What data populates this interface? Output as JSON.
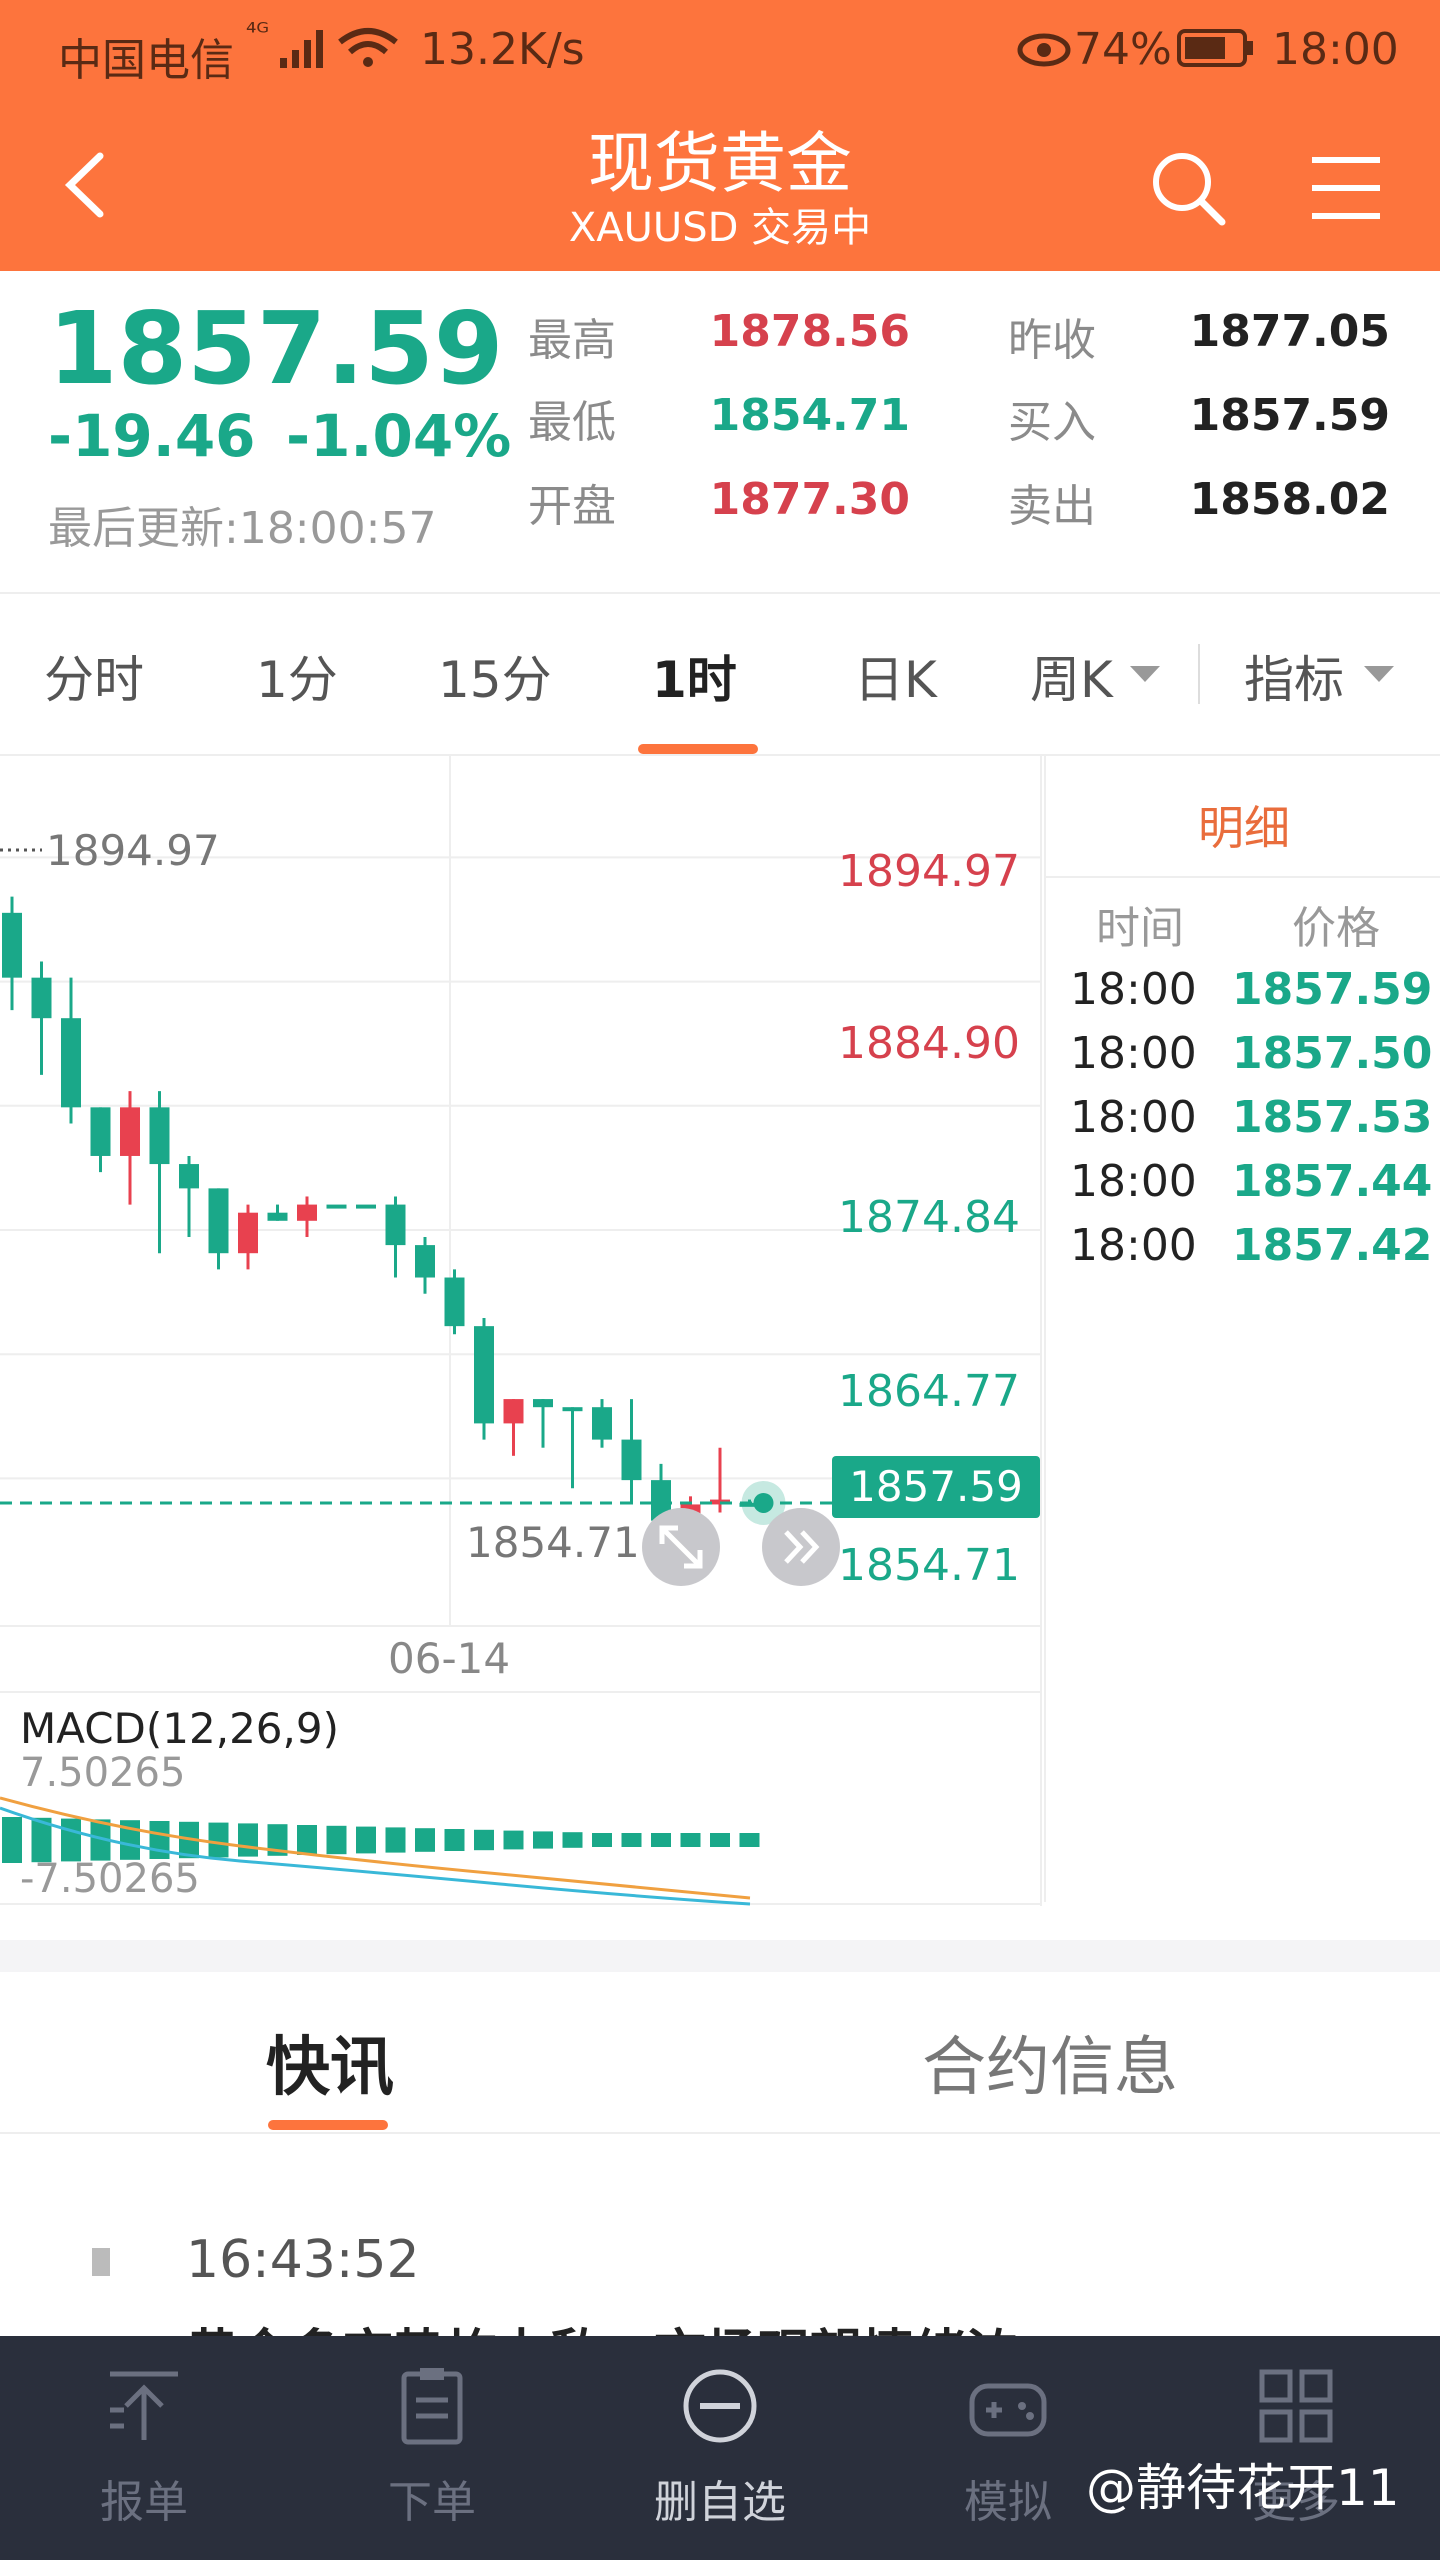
{
  "status_bar": {
    "carrier": "中国电信",
    "signal": "⁴ᴳ",
    "speed": "13.2K/s",
    "battery": "74%",
    "time": "18:00"
  },
  "header": {
    "title": "现货黄金",
    "subtitle": "XAUUSD 交易中"
  },
  "quote": {
    "price": "1857.59",
    "change": "-19.46",
    "change_pct": "-1.04%",
    "last_update": "最后更新:18:00:57",
    "stats": [
      {
        "label": "最高",
        "value": "1878.56"
      },
      {
        "label": "最低",
        "value": "1854.71"
      },
      {
        "label": "开盘",
        "value": "1877.30"
      },
      {
        "label": "昨收",
        "value": "1877.05"
      },
      {
        "label": "买入",
        "value": "1857.59"
      },
      {
        "label": "卖出",
        "value": "1858.02"
      }
    ]
  },
  "period_tabs": [
    "分时",
    "1分",
    "15分",
    "1时",
    "日K",
    "周K",
    "指标"
  ],
  "active_tab": "1时",
  "chart_data": {
    "type": "candlestick",
    "y_axis_labels": [
      "1894.97",
      "1884.90",
      "1874.84",
      "1864.77",
      "1854.71"
    ],
    "high_marker": "1894.97",
    "low_marker": "1854.71",
    "current_price": "1857.59",
    "date_label": "06-14",
    "ylim": [
      1850,
      1898
    ],
    "candles": [
      {
        "o": 1894,
        "c": 1890,
        "h": 1895,
        "l": 1888
      },
      {
        "o": 1890,
        "c": 1887.5,
        "h": 1891,
        "l": 1884
      },
      {
        "o": 1887.5,
        "c": 1882,
        "h": 1890,
        "l": 1881
      },
      {
        "o": 1882,
        "c": 1879,
        "h": 1882,
        "l": 1878
      },
      {
        "o": 1879,
        "c": 1882,
        "h": 1883,
        "l": 1876
      },
      {
        "o": 1882,
        "c": 1878.5,
        "h": 1883,
        "l": 1873
      },
      {
        "o": 1878.5,
        "c": 1877,
        "h": 1879,
        "l": 1874
      },
      {
        "o": 1877,
        "c": 1873,
        "h": 1877,
        "l": 1872
      },
      {
        "o": 1873,
        "c": 1875.5,
        "h": 1876,
        "l": 1872
      },
      {
        "o": 1875.5,
        "c": 1875,
        "h": 1876,
        "l": 1875
      },
      {
        "o": 1875,
        "c": 1876,
        "h": 1876.5,
        "l": 1874
      },
      {
        "o": 1876,
        "c": 1876,
        "h": 1876,
        "l": 1876
      },
      {
        "o": 1876,
        "c": 1876,
        "h": 1876,
        "l": 1876
      },
      {
        "o": 1876,
        "c": 1873.5,
        "h": 1876.5,
        "l": 1871.5
      },
      {
        "o": 1873.5,
        "c": 1871.5,
        "h": 1874,
        "l": 1870.5
      },
      {
        "o": 1871.5,
        "c": 1868.5,
        "h": 1872,
        "l": 1868
      },
      {
        "o": 1868.5,
        "c": 1862.5,
        "h": 1869,
        "l": 1861.5
      },
      {
        "o": 1862.5,
        "c": 1864,
        "h": 1864,
        "l": 1860.5
      },
      {
        "o": 1864,
        "c": 1863.5,
        "h": 1864,
        "l": 1861
      },
      {
        "o": 1863.5,
        "c": 1863.5,
        "h": 1863.5,
        "l": 1858.5
      },
      {
        "o": 1863.5,
        "c": 1861.5,
        "h": 1864,
        "l": 1861
      },
      {
        "o": 1861.5,
        "c": 1859,
        "h": 1864,
        "l": 1857.5
      },
      {
        "o": 1859,
        "c": 1856.5,
        "h": 1860,
        "l": 1855
      },
      {
        "o": 1856.5,
        "c": 1857.5,
        "h": 1858,
        "l": 1854.7
      },
      {
        "o": 1857.5,
        "c": 1857.8,
        "h": 1861,
        "l": 1857
      },
      {
        "o": 1857.6,
        "c": 1857.6,
        "h": 1857.8,
        "l": 1857.4
      }
    ],
    "macd": {
      "label": "MACD(12,26,9)",
      "upper": "7.50265",
      "lower": "-7.50265"
    }
  },
  "detail": {
    "title": "明细",
    "col_time": "时间",
    "col_price": "价格",
    "rows": [
      {
        "time": "18:00",
        "price": "1857.59"
      },
      {
        "time": "18:00",
        "price": "1857.50"
      },
      {
        "time": "18:00",
        "price": "1857.53"
      },
      {
        "time": "18:00",
        "price": "1857.44"
      },
      {
        "time": "18:00",
        "price": "1857.42"
      }
    ]
  },
  "news_tabs": [
    "快讯",
    "合约信息"
  ],
  "news": {
    "time": "16:43:52",
    "headline": "黄金多空势均力敌，市场观望情绪浓"
  },
  "bottom_nav": [
    {
      "label": "报单",
      "icon": "upload-icon"
    },
    {
      "label": "下单",
      "icon": "clipboard-icon"
    },
    {
      "label": "删自选",
      "icon": "minus-circle-icon"
    },
    {
      "label": "模拟",
      "icon": "gamepad-icon"
    },
    {
      "label": "更多",
      "icon": "grid-icon"
    }
  ],
  "watermark": "@静待花开11"
}
